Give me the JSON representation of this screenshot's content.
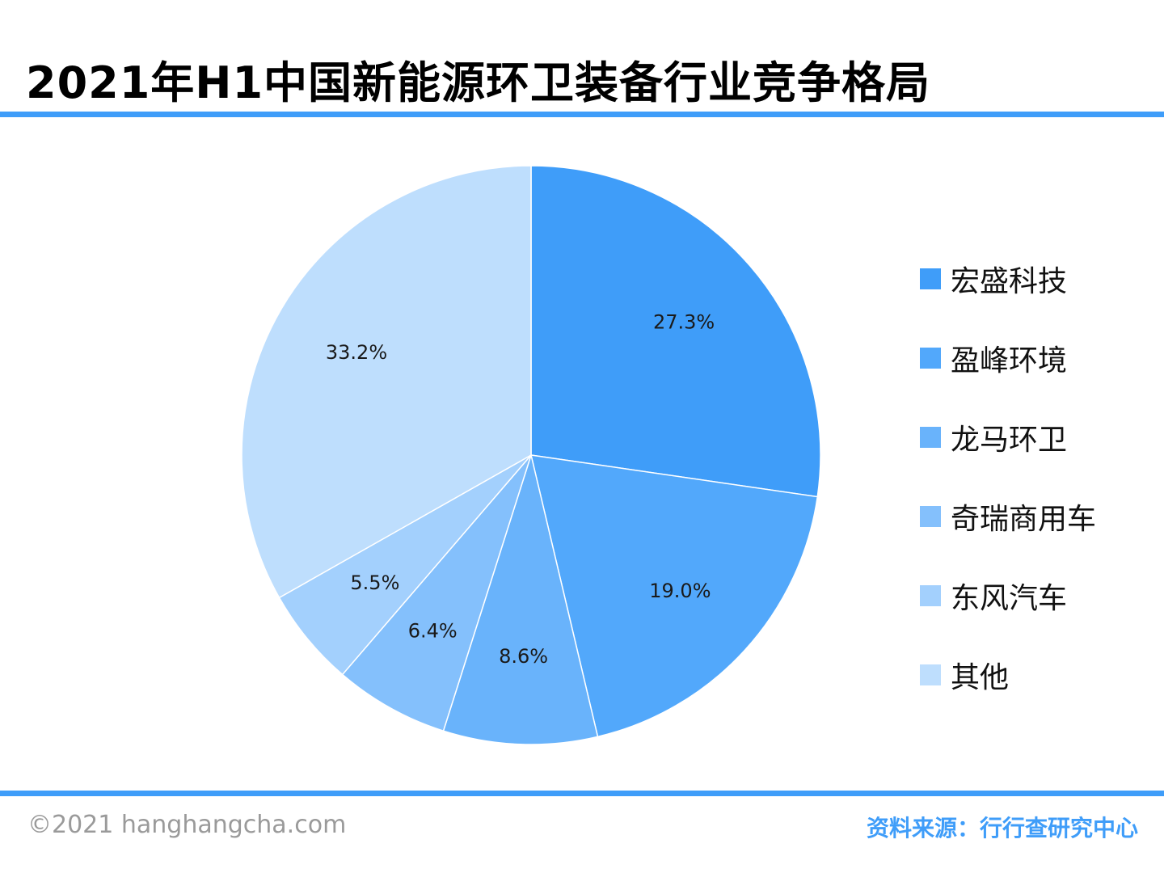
{
  "title": "2021年H1中国新能源环卫装备行业竞争格局",
  "chart_data": {
    "type": "pie",
    "title": "2021年H1中国新能源环卫装备行业竞争格局",
    "legend_position": "right",
    "unit": "%",
    "slices": [
      {
        "name": "宏盛科技",
        "value": 27.3,
        "label": "27.3%",
        "color": "#3f9df9"
      },
      {
        "name": "盈峰环境",
        "value": 19.0,
        "label": "19.0%",
        "color": "#52a8fb"
      },
      {
        "name": "龙马环卫",
        "value": 8.6,
        "label": "8.6%",
        "color": "#69b3fb"
      },
      {
        "name": "奇瑞商用车",
        "value": 6.4,
        "label": "6.4%",
        "color": "#84c0fc"
      },
      {
        "name": "东风汽车",
        "value": 5.5,
        "label": "5.5%",
        "color": "#a3d0fd"
      },
      {
        "name": "其他",
        "value": 33.2,
        "label": "33.2%",
        "color": "#bedefd"
      }
    ]
  },
  "footer": {
    "copyright": "©2021 hanghangcha.com",
    "source": "资料来源：行行查研究中心"
  }
}
